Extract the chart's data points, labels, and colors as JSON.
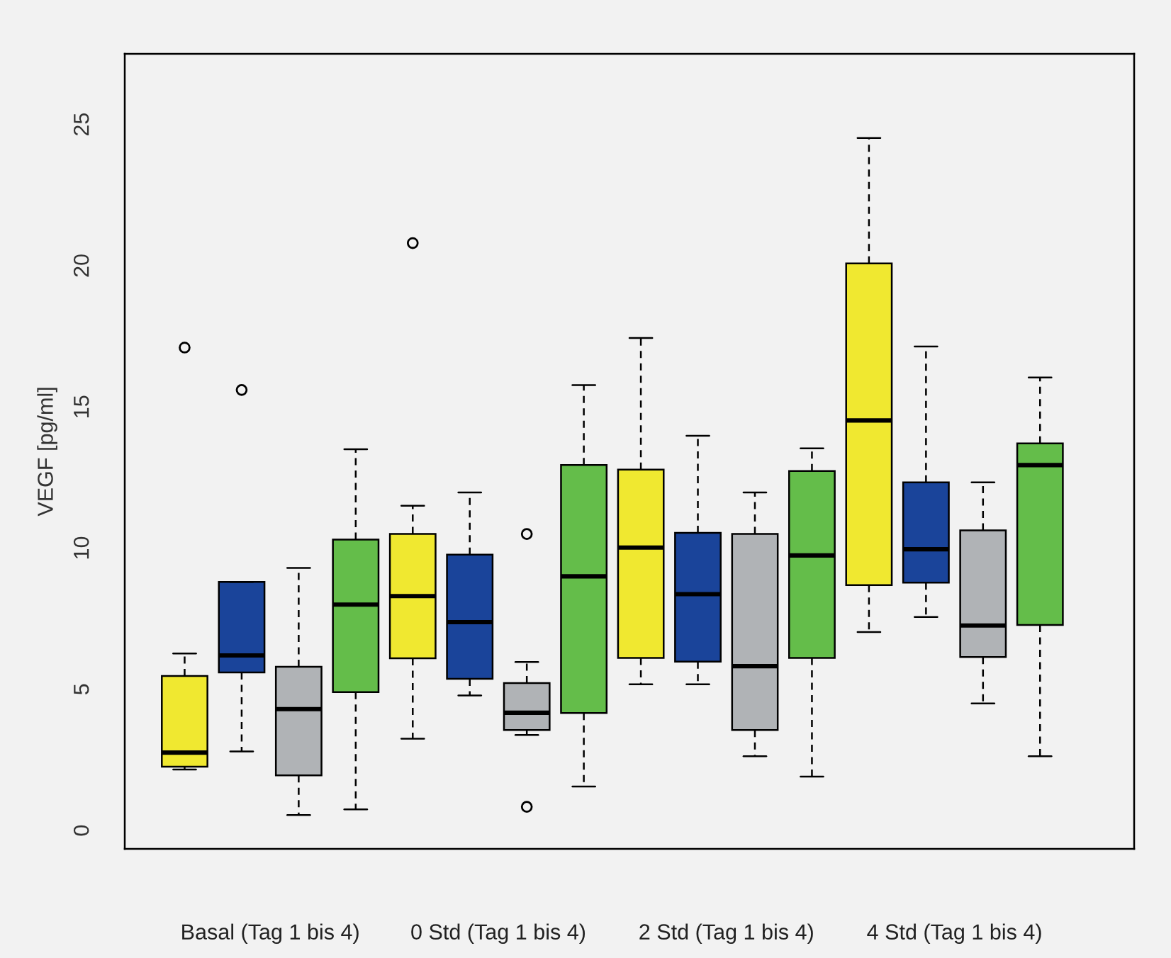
{
  "chart_data": {
    "type": "box",
    "ylabel": "VEGF [pg/ml]",
    "categories": [
      "Basal (Tag 1 bis 4)",
      "0 Std (Tag 1 bis 4)",
      "2 Std (Tag 1 bis 4)",
      "4 Std (Tag 1 bis 4)"
    ],
    "series": [
      {
        "color": "#f0e830",
        "boxes": [
          {
            "low": 2.16,
            "q1": 2.26,
            "median": 2.76,
            "q3": 5.47,
            "high": 6.27,
            "outliers": [
              17.1
            ]
          },
          {
            "low": 3.25,
            "q1": 6.1,
            "median": 8.3,
            "q3": 10.5,
            "high": 11.5,
            "outliers": [
              20.8
            ]
          },
          {
            "low": 5.18,
            "q1": 6.11,
            "median": 10.02,
            "q3": 12.78,
            "high": 17.44
          },
          {
            "low": 7.03,
            "q1": 8.69,
            "median": 14.52,
            "q3": 20.08,
            "high": 24.52
          }
        ]
      },
      {
        "color": "#1a449a",
        "boxes": [
          {
            "low": 2.8,
            "q1": 5.6,
            "median": 6.2,
            "q3": 8.8,
            "high": 8.8,
            "outliers": [
              15.6
            ]
          },
          {
            "low": 4.78,
            "q1": 5.37,
            "median": 7.38,
            "q3": 9.77,
            "high": 11.97
          },
          {
            "low": 5.18,
            "q1": 5.98,
            "median": 8.37,
            "q3": 10.54,
            "high": 13.98
          },
          {
            "low": 7.56,
            "q1": 8.78,
            "median": 9.96,
            "q3": 12.33,
            "high": 17.14
          }
        ]
      },
      {
        "color": "#b0b3b6",
        "boxes": [
          {
            "low": 0.55,
            "q1": 1.95,
            "median": 4.3,
            "q3": 5.8,
            "high": 9.3
          },
          {
            "low": 3.38,
            "q1": 3.56,
            "median": 4.17,
            "q3": 5.22,
            "high": 5.97,
            "outliers": [
              10.5,
              0.84
            ]
          },
          {
            "low": 2.63,
            "q1": 3.56,
            "median": 5.82,
            "q3": 10.5,
            "high": 11.97
          },
          {
            "low": 4.5,
            "q1": 6.14,
            "median": 7.26,
            "q3": 10.63,
            "high": 12.33
          }
        ]
      },
      {
        "color": "#64bd4a",
        "boxes": [
          {
            "low": 0.75,
            "q1": 4.9,
            "median": 8.0,
            "q3": 10.3,
            "high": 13.5
          },
          {
            "low": 1.56,
            "q1": 4.16,
            "median": 9.0,
            "q3": 12.94,
            "high": 15.77
          },
          {
            "low": 1.91,
            "q1": 6.11,
            "median": 9.74,
            "q3": 12.73,
            "high": 13.53
          },
          {
            "low": 2.63,
            "q1": 7.28,
            "median": 12.94,
            "q3": 13.71,
            "high": 16.04
          }
        ]
      }
    ],
    "ylim": [
      -0.65,
      27.5
    ],
    "yticks": [
      0,
      5,
      10,
      15,
      20,
      25
    ],
    "grid": false,
    "legend": false
  }
}
